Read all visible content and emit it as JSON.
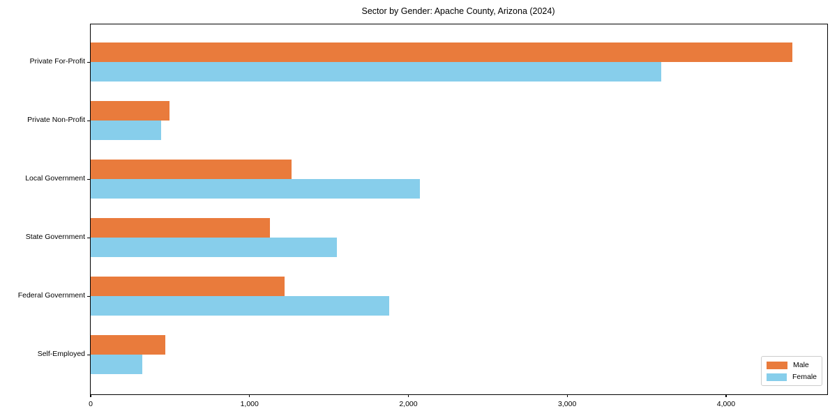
{
  "chart_data": {
    "type": "bar",
    "orientation": "horizontal",
    "title": "Sector by Gender: Apache County, Arizona (2024)",
    "xlabel": "",
    "ylabel": "",
    "categories": [
      "Private For-Profit",
      "Private Non-Profit",
      "Local Government",
      "State Government",
      "Federal Government",
      "Self-Employed"
    ],
    "series": [
      {
        "name": "Male",
        "color": "#E97B3C",
        "values": [
          4417,
          498,
          1266,
          1128,
          1219,
          469
        ]
      },
      {
        "name": "Female",
        "color": "#87CEEB",
        "values": [
          3590,
          443,
          2071,
          1551,
          1881,
          326
        ]
      }
    ],
    "xlim": [
      0,
      4637
    ],
    "x_ticks": [
      0,
      1000,
      2000,
      3000,
      4000
    ],
    "x_tick_labels": [
      "0",
      "1,000",
      "2,000",
      "3,000",
      "4,000"
    ],
    "grid": false,
    "legend_position": "lower right",
    "plot_background": "#ffffff",
    "spine_color": "#000000"
  }
}
